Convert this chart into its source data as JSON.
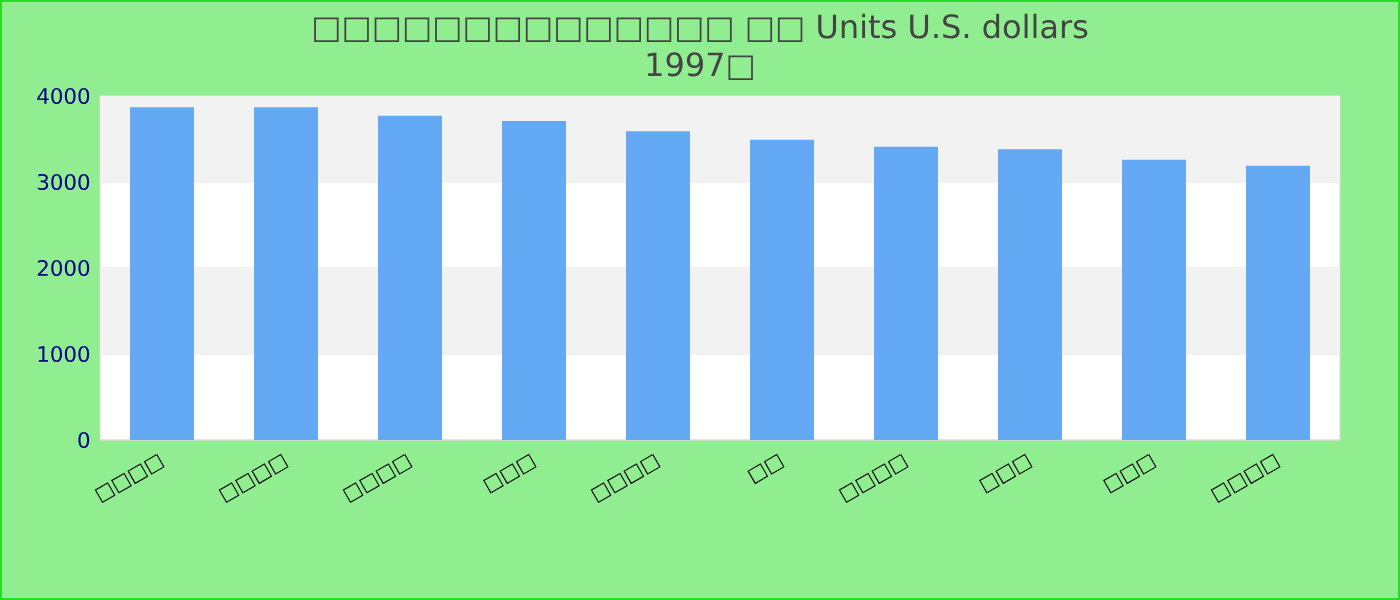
{
  "chart_data": {
    "type": "bar",
    "title": "□□□□□□□□□□□□□□ □□ Units U.S. dollars",
    "subtitle": "1997□",
    "categories": [
      "□□□□",
      "□□□□",
      "□□□□",
      "□□□",
      "□□□□",
      "□□",
      "□□□□",
      "□□□",
      "□□□",
      "□□□□"
    ],
    "values": [
      3870,
      3870,
      3770,
      3710,
      3590,
      3490,
      3410,
      3380,
      3260,
      3190
    ],
    "color": "#63a9f3",
    "ylim": [
      0,
      4000
    ],
    "yticks": [
      0,
      1000,
      2000,
      3000,
      4000
    ],
    "grid": "y"
  }
}
